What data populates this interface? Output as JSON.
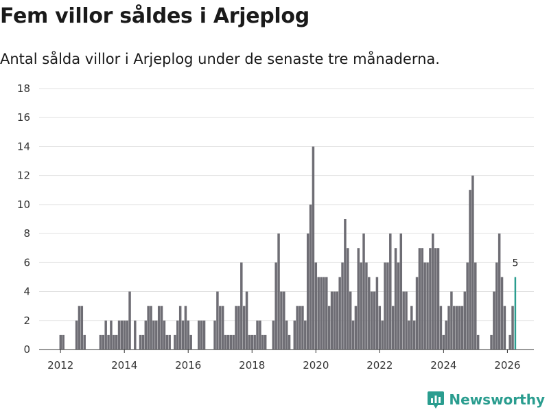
{
  "title": "Fem villor såldes i Arjeplog",
  "subtitle": "Antal sålda villor i Arjeplog under de senaste tre månaderna.",
  "brand": {
    "name": "Newsworthy",
    "logo_icon": "bar-chart-logo-icon"
  },
  "colors": {
    "bar": "#6e6d74",
    "highlight": "#2a9d8f",
    "grid": "#e2e2e2"
  },
  "chart_data": {
    "type": "bar",
    "title": "Fem villor såldes i Arjeplog",
    "subtitle": "Antal sålda villor i Arjeplog under de senaste tre månaderna.",
    "xlabel": "",
    "ylabel": "",
    "ylim": [
      0,
      18
    ],
    "y_ticks": [
      0,
      2,
      4,
      6,
      8,
      10,
      12,
      14,
      16,
      18
    ],
    "x_ticks": [
      "2012",
      "2014",
      "2016",
      "2018",
      "2020",
      "2022",
      "2024",
      "2026"
    ],
    "x_tick_values": [
      2012,
      2014,
      2016,
      2018,
      2020,
      2022,
      2024,
      2026
    ],
    "x_range": [
      2011.33,
      2026.83
    ],
    "period_start": 2011.67,
    "period_step": 0.0833,
    "grid": true,
    "highlight_label": "5",
    "highlight_value": 5,
    "values": [
      0,
      0,
      0,
      0,
      1,
      1,
      0,
      0,
      0,
      0,
      2,
      3,
      3,
      1,
      0,
      0,
      0,
      0,
      0,
      1,
      1,
      2,
      1,
      2,
      1,
      1,
      2,
      2,
      2,
      2,
      4,
      0,
      2,
      0,
      1,
      1,
      2,
      3,
      3,
      2,
      2,
      3,
      3,
      2,
      1,
      1,
      0,
      1,
      2,
      3,
      2,
      3,
      2,
      1,
      0,
      0,
      2,
      2,
      2,
      0,
      0,
      0,
      2,
      4,
      3,
      3,
      1,
      1,
      1,
      1,
      3,
      3,
      6,
      3,
      4,
      1,
      1,
      1,
      2,
      2,
      1,
      1,
      0,
      0,
      2,
      6,
      8,
      4,
      4,
      2,
      1,
      0,
      2,
      3,
      3,
      3,
      2,
      8,
      10,
      14,
      6,
      5,
      5,
      5,
      5,
      3,
      4,
      4,
      4,
      5,
      6,
      9,
      7,
      4,
      2,
      3,
      7,
      6,
      8,
      6,
      5,
      4,
      4,
      5,
      3,
      2,
      6,
      6,
      8,
      3,
      7,
      6,
      8,
      4,
      4,
      2,
      3,
      2,
      5,
      7,
      7,
      6,
      6,
      7,
      8,
      7,
      7,
      3,
      1,
      2,
      3,
      4,
      3,
      3,
      3,
      3,
      4,
      6,
      11,
      12,
      6,
      1,
      0,
      0,
      0,
      0,
      1,
      4,
      6,
      8,
      5,
      3,
      0,
      1,
      3,
      5
    ]
  }
}
